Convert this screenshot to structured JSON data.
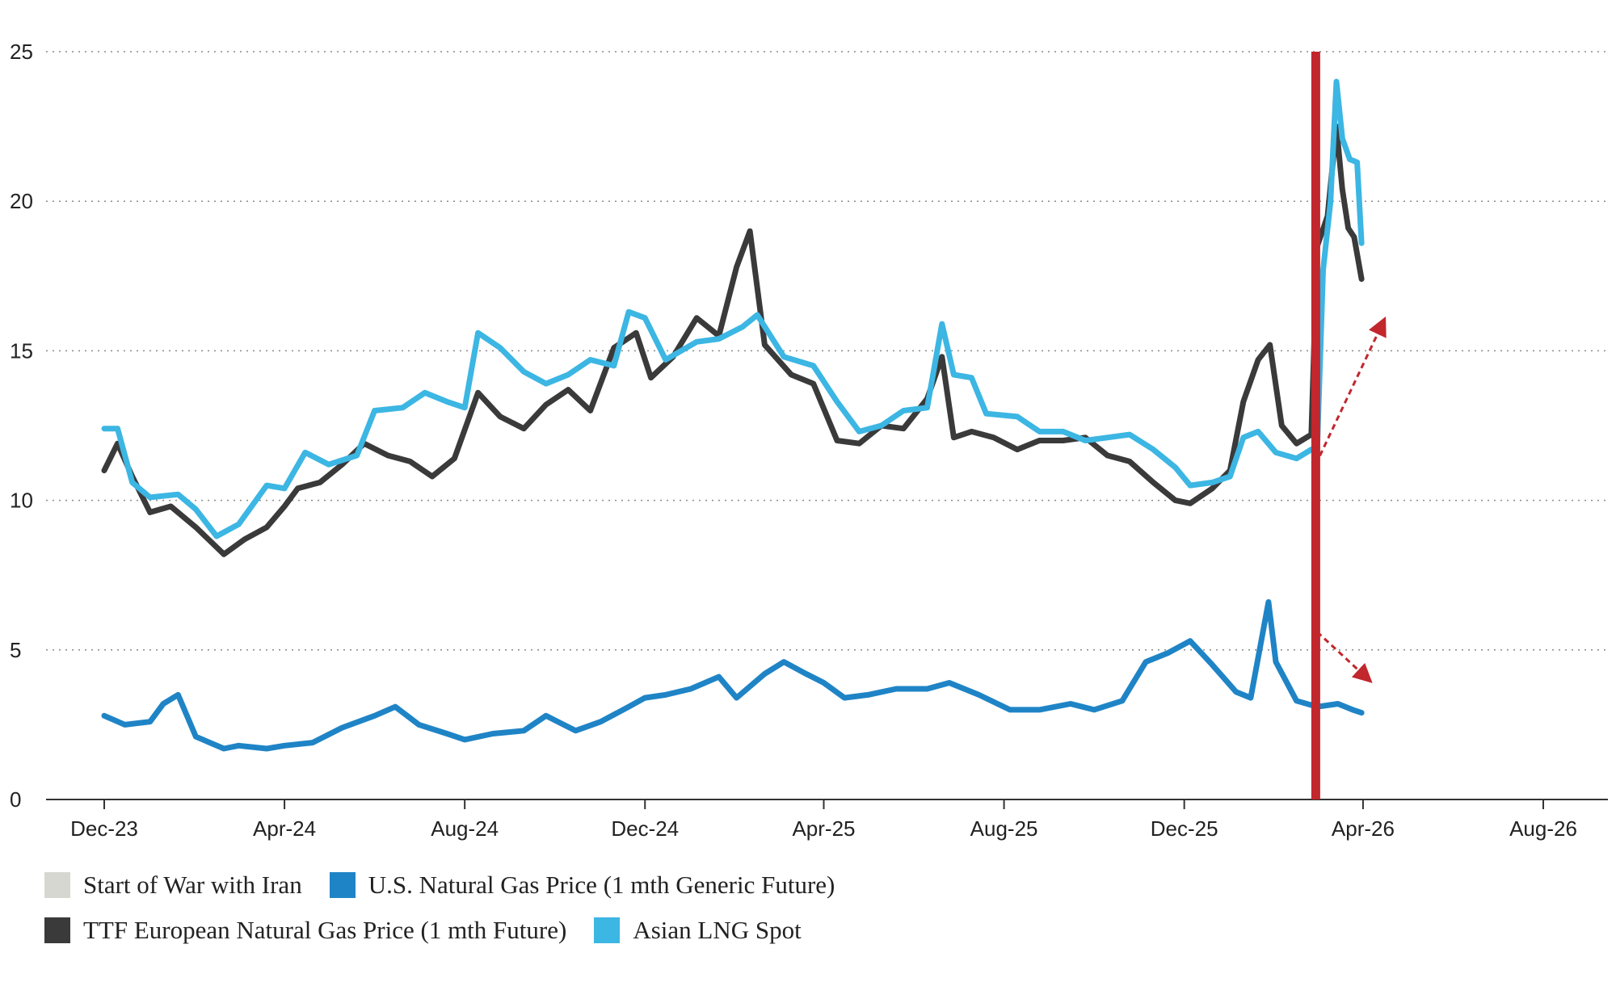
{
  "chart_data": {
    "type": "line",
    "title": "",
    "xlabel": "",
    "ylabel": "",
    "ylim": [
      0,
      25
    ],
    "y_ticks": [
      "0",
      "5",
      "10",
      "15",
      "20",
      "25"
    ],
    "x_ticks": [
      "Dec-23",
      "Apr-24",
      "Aug-24",
      "Dec-24",
      "Apr-25",
      "Aug-25",
      "Dec-25",
      "Apr-26",
      "Aug-26"
    ],
    "grid": "horizontal dotted",
    "legend_position": "bottom",
    "event_line": {
      "name": "Start of War with Iran",
      "date": "2026-02-28",
      "color": "#c1272d"
    },
    "series": [
      {
        "name": "U.S. Natural Gas Price (1 mth Generic Future)",
        "color": "#1f84c6",
        "points": [
          [
            "2023-12-01",
            2.8
          ],
          [
            "2023-12-15",
            2.5
          ],
          [
            "2024-01-01",
            2.6
          ],
          [
            "2024-01-10",
            3.2
          ],
          [
            "2024-01-20",
            3.5
          ],
          [
            "2024-02-01",
            2.1
          ],
          [
            "2024-02-20",
            1.7
          ],
          [
            "2024-03-01",
            1.8
          ],
          [
            "2024-03-20",
            1.7
          ],
          [
            "2024-04-01",
            1.8
          ],
          [
            "2024-04-20",
            1.9
          ],
          [
            "2024-05-10",
            2.4
          ],
          [
            "2024-06-01",
            2.8
          ],
          [
            "2024-06-15",
            3.1
          ],
          [
            "2024-07-01",
            2.5
          ],
          [
            "2024-07-20",
            2.2
          ],
          [
            "2024-08-01",
            2.0
          ],
          [
            "2024-08-20",
            2.2
          ],
          [
            "2024-09-10",
            2.3
          ],
          [
            "2024-09-25",
            2.8
          ],
          [
            "2024-10-15",
            2.3
          ],
          [
            "2024-11-01",
            2.6
          ],
          [
            "2024-11-20",
            3.1
          ],
          [
            "2024-12-01",
            3.4
          ],
          [
            "2024-12-15",
            3.5
          ],
          [
            "2025-01-01",
            3.7
          ],
          [
            "2025-01-20",
            4.1
          ],
          [
            "2025-02-01",
            3.4
          ],
          [
            "2025-02-20",
            4.2
          ],
          [
            "2025-03-05",
            4.6
          ],
          [
            "2025-03-20",
            4.2
          ],
          [
            "2025-04-01",
            3.9
          ],
          [
            "2025-04-15",
            3.4
          ],
          [
            "2025-05-01",
            3.5
          ],
          [
            "2025-05-20",
            3.7
          ],
          [
            "2025-06-10",
            3.7
          ],
          [
            "2025-06-25",
            3.9
          ],
          [
            "2025-07-15",
            3.5
          ],
          [
            "2025-08-05",
            3.0
          ],
          [
            "2025-08-25",
            3.0
          ],
          [
            "2025-09-15",
            3.2
          ],
          [
            "2025-10-01",
            3.0
          ],
          [
            "2025-10-20",
            3.3
          ],
          [
            "2025-11-05",
            4.6
          ],
          [
            "2025-11-20",
            4.9
          ],
          [
            "2025-12-05",
            5.3
          ],
          [
            "2025-12-20",
            4.5
          ],
          [
            "2026-01-05",
            3.6
          ],
          [
            "2026-01-15",
            3.4
          ],
          [
            "2026-01-27",
            6.6
          ],
          [
            "2026-02-01",
            4.6
          ],
          [
            "2026-02-15",
            3.3
          ],
          [
            "2026-03-01",
            3.1
          ],
          [
            "2026-03-15",
            3.2
          ],
          [
            "2026-03-25",
            3.0
          ],
          [
            "2026-03-31",
            2.9
          ]
        ]
      },
      {
        "name": "TTF European Natural Gas Price (1 mth Future)",
        "color": "#3a3a3a",
        "points": [
          [
            "2023-12-01",
            11.0
          ],
          [
            "2023-12-10",
            11.9
          ],
          [
            "2023-12-20",
            10.8
          ],
          [
            "2024-01-01",
            9.6
          ],
          [
            "2024-01-15",
            9.8
          ],
          [
            "2024-02-01",
            9.1
          ],
          [
            "2024-02-20",
            8.2
          ],
          [
            "2024-03-05",
            8.7
          ],
          [
            "2024-03-20",
            9.1
          ],
          [
            "2024-04-01",
            9.8
          ],
          [
            "2024-04-10",
            10.4
          ],
          [
            "2024-04-25",
            10.6
          ],
          [
            "2024-05-10",
            11.2
          ],
          [
            "2024-05-25",
            11.9
          ],
          [
            "2024-06-10",
            11.5
          ],
          [
            "2024-06-25",
            11.3
          ],
          [
            "2024-07-10",
            10.8
          ],
          [
            "2024-07-25",
            11.4
          ],
          [
            "2024-08-10",
            13.6
          ],
          [
            "2024-08-25",
            12.8
          ],
          [
            "2024-09-10",
            12.4
          ],
          [
            "2024-09-25",
            13.2
          ],
          [
            "2024-10-10",
            13.7
          ],
          [
            "2024-10-25",
            13.0
          ],
          [
            "2024-11-10",
            15.1
          ],
          [
            "2024-11-25",
            15.6
          ],
          [
            "2024-12-05",
            14.1
          ],
          [
            "2024-12-20",
            14.8
          ],
          [
            "2025-01-05",
            16.1
          ],
          [
            "2025-01-20",
            15.5
          ],
          [
            "2025-02-01",
            17.8
          ],
          [
            "2025-02-10",
            19.0
          ],
          [
            "2025-02-20",
            15.2
          ],
          [
            "2025-03-10",
            14.2
          ],
          [
            "2025-03-25",
            13.9
          ],
          [
            "2025-04-10",
            12.0
          ],
          [
            "2025-04-25",
            11.9
          ],
          [
            "2025-05-10",
            12.5
          ],
          [
            "2025-05-25",
            12.4
          ],
          [
            "2025-06-10",
            13.4
          ],
          [
            "2025-06-20",
            14.8
          ],
          [
            "2025-06-28",
            12.1
          ],
          [
            "2025-07-10",
            12.3
          ],
          [
            "2025-07-25",
            12.1
          ],
          [
            "2025-08-10",
            11.7
          ],
          [
            "2025-08-25",
            12.0
          ],
          [
            "2025-09-10",
            12.0
          ],
          [
            "2025-09-25",
            12.1
          ],
          [
            "2025-10-10",
            11.5
          ],
          [
            "2025-10-25",
            11.3
          ],
          [
            "2025-11-10",
            10.6
          ],
          [
            "2025-11-25",
            10.0
          ],
          [
            "2025-12-05",
            9.9
          ],
          [
            "2025-12-20",
            10.4
          ],
          [
            "2026-01-01",
            11.0
          ],
          [
            "2026-01-10",
            13.3
          ],
          [
            "2026-01-20",
            14.7
          ],
          [
            "2026-01-28",
            15.2
          ],
          [
            "2026-02-05",
            12.5
          ],
          [
            "2026-02-15",
            11.9
          ],
          [
            "2026-02-25",
            12.2
          ],
          [
            "2026-03-01",
            18.5
          ],
          [
            "2026-03-08",
            19.5
          ],
          [
            "2026-03-14",
            22.5
          ],
          [
            "2026-03-18",
            20.4
          ],
          [
            "2026-03-22",
            19.1
          ],
          [
            "2026-03-26",
            18.8
          ],
          [
            "2026-03-31",
            17.4
          ]
        ]
      },
      {
        "name": "Asian LNG Spot",
        "color": "#3cb6e3",
        "points": [
          [
            "2023-12-01",
            12.4
          ],
          [
            "2023-12-10",
            12.4
          ],
          [
            "2023-12-20",
            10.6
          ],
          [
            "2024-01-01",
            10.1
          ],
          [
            "2024-01-20",
            10.2
          ],
          [
            "2024-02-01",
            9.7
          ],
          [
            "2024-02-15",
            8.8
          ],
          [
            "2024-03-01",
            9.2
          ],
          [
            "2024-03-20",
            10.5
          ],
          [
            "2024-04-01",
            10.4
          ],
          [
            "2024-04-15",
            11.6
          ],
          [
            "2024-05-01",
            11.2
          ],
          [
            "2024-05-20",
            11.5
          ],
          [
            "2024-06-01",
            13.0
          ],
          [
            "2024-06-20",
            13.1
          ],
          [
            "2024-07-05",
            13.6
          ],
          [
            "2024-07-20",
            13.3
          ],
          [
            "2024-08-01",
            13.1
          ],
          [
            "2024-08-10",
            15.6
          ],
          [
            "2024-08-25",
            15.1
          ],
          [
            "2024-09-10",
            14.3
          ],
          [
            "2024-09-25",
            13.9
          ],
          [
            "2024-10-10",
            14.2
          ],
          [
            "2024-10-25",
            14.7
          ],
          [
            "2024-11-10",
            14.5
          ],
          [
            "2024-11-20",
            16.3
          ],
          [
            "2024-12-01",
            16.1
          ],
          [
            "2024-12-15",
            14.7
          ],
          [
            "2025-01-05",
            15.3
          ],
          [
            "2025-01-20",
            15.4
          ],
          [
            "2025-02-05",
            15.8
          ],
          [
            "2025-02-15",
            16.2
          ],
          [
            "2025-03-05",
            14.8
          ],
          [
            "2025-03-25",
            14.5
          ],
          [
            "2025-04-10",
            13.3
          ],
          [
            "2025-04-25",
            12.3
          ],
          [
            "2025-05-10",
            12.5
          ],
          [
            "2025-05-25",
            13.0
          ],
          [
            "2025-06-10",
            13.1
          ],
          [
            "2025-06-20",
            15.9
          ],
          [
            "2025-06-28",
            14.2
          ],
          [
            "2025-07-10",
            14.1
          ],
          [
            "2025-07-20",
            12.9
          ],
          [
            "2025-08-10",
            12.8
          ],
          [
            "2025-08-25",
            12.3
          ],
          [
            "2025-09-10",
            12.3
          ],
          [
            "2025-09-25",
            12.0
          ],
          [
            "2025-10-10",
            12.1
          ],
          [
            "2025-10-25",
            12.2
          ],
          [
            "2025-11-10",
            11.7
          ],
          [
            "2025-11-25",
            11.1
          ],
          [
            "2025-12-05",
            10.5
          ],
          [
            "2025-12-20",
            10.6
          ],
          [
            "2026-01-01",
            10.8
          ],
          [
            "2026-01-10",
            12.1
          ],
          [
            "2026-01-20",
            12.3
          ],
          [
            "2026-02-01",
            11.6
          ],
          [
            "2026-02-15",
            11.4
          ],
          [
            "2026-02-25",
            11.7
          ],
          [
            "2026-03-01",
            11.7
          ],
          [
            "2026-03-05",
            17.7
          ],
          [
            "2026-03-10",
            20.0
          ],
          [
            "2026-03-14",
            24.0
          ],
          [
            "2026-03-18",
            22.1
          ],
          [
            "2026-03-23",
            21.4
          ],
          [
            "2026-03-28",
            21.3
          ],
          [
            "2026-03-31",
            18.6
          ]
        ]
      }
    ],
    "annotations": [
      {
        "name": "upward-trend-arrow",
        "color": "#c1272d",
        "from": [
          "2026-02-28",
          11.2
        ],
        "to": [
          "2026-04-15",
          16.0
        ]
      },
      {
        "name": "downward-trend-arrow",
        "color": "#c1272d",
        "from": [
          "2026-03-01",
          5.6
        ],
        "to": [
          "2026-04-05",
          4.0
        ]
      }
    ]
  },
  "legend": {
    "items": [
      {
        "label": "Start of War with Iran",
        "color": "#d7d7d2"
      },
      {
        "label": "U.S. Natural Gas Price (1 mth Generic Future)",
        "color": "#1f84c6"
      },
      {
        "label": "TTF European Natural Gas Price (1 mth Future)",
        "color": "#3a3a3a"
      },
      {
        "label": "Asian LNG Spot",
        "color": "#3cb6e3"
      }
    ]
  }
}
